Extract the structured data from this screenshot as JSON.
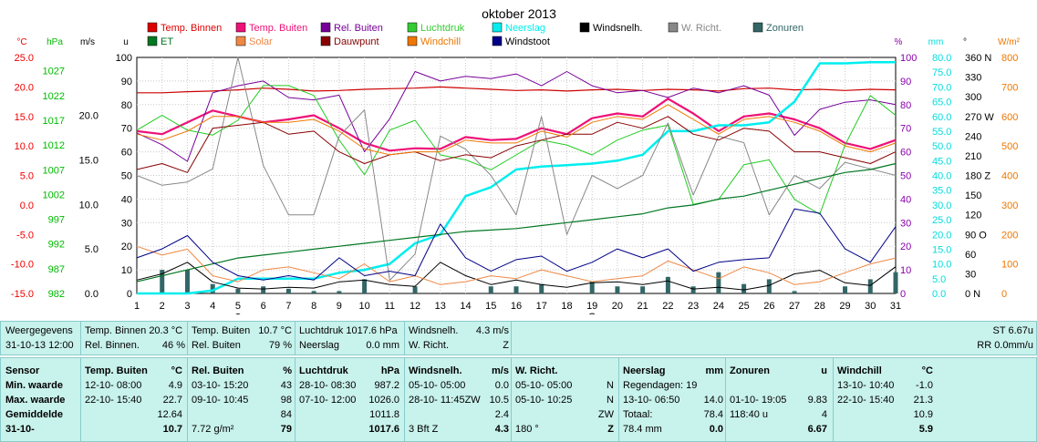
{
  "chart_data": {
    "type": "line",
    "title": "oktober 2013",
    "x": [
      1,
      2,
      3,
      4,
      5,
      6,
      7,
      8,
      9,
      10,
      11,
      12,
      13,
      14,
      15,
      16,
      17,
      18,
      19,
      20,
      21,
      22,
      23,
      24,
      25,
      26,
      27,
      28,
      29,
      30,
      31
    ],
    "axes": {
      "temp": {
        "unit": "°C",
        "ticks": [
          "25.0",
          "20.0",
          "15.0",
          "10.0",
          "5.0",
          "0.0",
          "-5.0",
          "-10.0",
          "-15.0"
        ],
        "color": "#ee0000"
      },
      "press": {
        "unit": "hPa",
        "ticks": [
          "1027",
          "1022",
          "1017",
          "1012",
          "1007",
          "1002",
          "997",
          "992",
          "987",
          "982"
        ],
        "color": "#00bb00"
      },
      "wind": {
        "unit": "m/s",
        "ticks": [
          "20.0",
          "15.0",
          "10.0",
          "5.0",
          "0.0"
        ],
        "color": "#000000"
      },
      "uv": {
        "unit": "u",
        "ticks": [
          "100",
          "90",
          "80",
          "70",
          "60",
          "50",
          "40",
          "30",
          "20",
          "10",
          "0"
        ],
        "color": "#000000"
      },
      "pct": {
        "unit": "%",
        "ticks": [
          "100",
          "90",
          "80",
          "70",
          "60",
          "50",
          "40",
          "30",
          "20",
          "10",
          "0"
        ],
        "color": "#8800aa"
      },
      "rain": {
        "unit": "mm",
        "ticks": [
          "80.0",
          "75.0",
          "70.0",
          "65.0",
          "60.0",
          "55.0",
          "50.0",
          "45.0",
          "40.0",
          "35.0",
          "30.0",
          "25.0",
          "20.0",
          "15.0",
          "10.0",
          "5.0",
          "0.0"
        ],
        "color": "#00dddd"
      },
      "dir": {
        "unit": "°",
        "ticks": [
          "360 N",
          "330",
          "300",
          "270 W",
          "240",
          "210",
          "180 Z",
          "150",
          "120",
          "90 O",
          "60",
          "30",
          "0 N"
        ],
        "color": "#000000"
      },
      "solar": {
        "unit": "W/m²",
        "ticks": [
          "800",
          "700",
          "600",
          "500",
          "400",
          "300",
          "200",
          "100",
          "0"
        ],
        "color": "#ee7700"
      }
    },
    "legend": [
      {
        "name": "Temp. Binnen",
        "color": "#dd0000"
      },
      {
        "name": "Temp. Buiten",
        "color": "#ee1177"
      },
      {
        "name": "Rel. Buiten",
        "color": "#770099"
      },
      {
        "name": "Luchtdruk",
        "color": "#33cc33"
      },
      {
        "name": "Neerslag",
        "color": "#00eeee"
      },
      {
        "name": "Windsnelh.",
        "color": "#000000"
      },
      {
        "name": "W. Richt.",
        "color": "#888888"
      },
      {
        "name": "Zonuren",
        "color": "#336666"
      },
      {
        "name": "ET",
        "color": "#007722"
      },
      {
        "name": "Solar",
        "color": "#ee8844"
      },
      {
        "name": "Dauwpunt",
        "color": "#880000"
      },
      {
        "name": "Windchill",
        "color": "#ee7700"
      },
      {
        "name": "Windstoot",
        "color": "#000088"
      }
    ],
    "series": [
      {
        "name": "Temp. Binnen",
        "axis": "temp",
        "color": "#cc0000",
        "width": 1.2,
        "values": [
          19.0,
          19.0,
          19.2,
          19.3,
          19.5,
          19.8,
          19.6,
          19.3,
          19.4,
          19.6,
          19.7,
          19.8,
          20.0,
          19.8,
          19.6,
          19.4,
          19.5,
          19.3,
          19.5,
          19.6,
          19.4,
          19.6,
          19.5,
          19.3,
          19.7,
          19.8,
          19.5,
          19.6,
          19.4,
          19.6,
          19.5
        ]
      },
      {
        "name": "Temp. Buiten",
        "axis": "temp",
        "color": "#ee1177",
        "width": 2.2,
        "values": [
          12.5,
          12.0,
          14.0,
          16.0,
          15.0,
          14.0,
          14.5,
          15.2,
          13.0,
          10.5,
          9.2,
          9.6,
          9.5,
          11.5,
          11.0,
          11.2,
          13.0,
          12.0,
          14.7,
          15.5,
          15.0,
          18.0,
          15.5,
          12.5,
          15.0,
          15.5,
          14.5,
          13.0,
          10.5,
          9.5,
          11.0
        ]
      },
      {
        "name": "Rel. Buiten",
        "axis": "pct",
        "color": "#770099",
        "width": 1,
        "values": [
          68,
          63,
          56,
          85,
          88,
          90,
          83,
          82,
          84,
          60,
          74,
          94,
          90,
          92,
          91,
          93,
          88,
          94,
          88,
          85,
          86,
          83,
          87,
          85,
          88,
          84,
          67,
          78,
          81,
          82,
          80
        ]
      },
      {
        "name": "Luchtdruk",
        "axis": "press",
        "color": "#22cc22",
        "width": 1,
        "values": [
          1015,
          1018,
          1015,
          1014,
          1017,
          1024,
          1024,
          1022,
          1013,
          1006,
          1015,
          1017,
          1010,
          1009,
          1007,
          1010,
          1013,
          1012,
          1010,
          1013,
          1015,
          1016,
          1000,
          1001,
          1008,
          1009,
          1001,
          998,
          1012,
          1022,
          1018
        ]
      },
      {
        "name": "Neerslag",
        "axis": "rain",
        "color": "#00eeee",
        "width": 2.5,
        "values": [
          0,
          0,
          0,
          1,
          5,
          5,
          5,
          5,
          7,
          8,
          10,
          17,
          20,
          33,
          36,
          42,
          43,
          43.5,
          44,
          45,
          47,
          55,
          55,
          57,
          57,
          58,
          65,
          78,
          78,
          78.4,
          78.4
        ]
      },
      {
        "name": "Windsnelh.",
        "axis": "wind",
        "color": "#000000",
        "width": 1,
        "values": [
          1.5,
          2.2,
          3.5,
          1.3,
          0.6,
          0.5,
          0.7,
          0.6,
          1.3,
          1.5,
          1.0,
          0.8,
          3.5,
          2.0,
          1.0,
          1.5,
          1.0,
          0.7,
          1.2,
          1.3,
          1.0,
          1.4,
          0.5,
          0.7,
          0.4,
          0.9,
          2.2,
          2.6,
          1.2,
          0.9,
          3.0
        ]
      },
      {
        "name": "W. Richt.",
        "axis": "dir",
        "color": "#888888",
        "width": 1,
        "values": [
          180,
          165,
          170,
          190,
          360,
          195,
          120,
          120,
          240,
          280,
          20,
          60,
          240,
          220,
          180,
          120,
          270,
          90,
          180,
          160,
          180,
          260,
          150,
          240,
          230,
          120,
          180,
          160,
          200,
          190,
          180
        ]
      },
      {
        "name": "ET",
        "axis": "rain",
        "color": "#007722",
        "width": 1.2,
        "values": [
          4,
          6,
          8,
          10,
          12,
          13,
          14,
          15,
          16,
          17,
          18,
          19,
          20,
          21,
          21.5,
          22,
          23,
          24,
          25,
          26,
          27,
          29,
          30,
          32,
          33,
          35,
          37,
          39,
          41,
          42,
          44
        ]
      },
      {
        "name": "Solar",
        "axis": "solar",
        "color": "#ee8844",
        "width": 1,
        "values": [
          160,
          130,
          150,
          60,
          40,
          80,
          90,
          70,
          50,
          100,
          40,
          60,
          30,
          40,
          60,
          50,
          80,
          60,
          40,
          50,
          60,
          110,
          80,
          50,
          90,
          70,
          30,
          40,
          70,
          100,
          120
        ]
      },
      {
        "name": "Dauwpunt",
        "axis": "temp",
        "color": "#880000",
        "width": 1,
        "values": [
          6,
          7,
          5.5,
          13,
          13.5,
          14,
          12,
          12.5,
          9,
          7,
          8.5,
          9,
          7.5,
          8.5,
          8,
          10,
          11,
          12,
          12,
          14,
          13,
          15,
          12,
          11,
          13,
          12.5,
          9,
          9,
          8,
          7,
          9
        ]
      },
      {
        "name": "Windchill",
        "axis": "temp",
        "color": "#ee7700",
        "width": 1,
        "values": [
          12.0,
          11.0,
          12.5,
          15.0,
          15.0,
          14.0,
          14.0,
          14.5,
          12.5,
          9.5,
          8.5,
          9.0,
          9.0,
          11.0,
          10.5,
          10.5,
          12.5,
          11.5,
          14.0,
          15.0,
          14.5,
          17.0,
          14.5,
          12.0,
          14.5,
          15.0,
          14.0,
          12.5,
          10.0,
          9.0,
          10.5
        ]
      },
      {
        "name": "Windstoot",
        "axis": "wind",
        "color": "#000088",
        "width": 1,
        "values": [
          4.0,
          5.0,
          6.5,
          3.5,
          2.0,
          1.5,
          2.0,
          1.5,
          4.0,
          2.0,
          2.5,
          2.0,
          7.8,
          4.0,
          2.5,
          3.8,
          4.2,
          2.5,
          3.5,
          5.0,
          4.0,
          5.0,
          2.5,
          3.5,
          3.8,
          4.0,
          9.5,
          9.0,
          5.0,
          3.5,
          7.5
        ]
      }
    ],
    "bars": {
      "name": "Zonuren",
      "axis": "uv",
      "color": "#336666",
      "values": [
        0,
        10,
        10,
        4,
        2,
        3,
        2,
        1,
        1,
        6,
        0,
        3,
        0,
        0,
        3,
        3,
        4,
        0,
        5,
        3,
        3,
        7,
        3,
        9,
        4,
        6,
        1,
        0,
        3,
        6,
        9
      ]
    },
    "markers": [
      {
        "x": 5,
        "label": "●"
      },
      {
        "x": 19,
        "label": "○"
      }
    ]
  },
  "summary": {
    "row1": [
      {
        "l1": "Weergegevens",
        "v1": "",
        "l2": "31-10-13 12:00",
        "v2": ""
      },
      {
        "l1": "Temp. Binnen 20.3 °C",
        "v1": "",
        "l2": "Rel. Binnen.",
        "v2": "46 %"
      },
      {
        "l1": "Temp. Buiten",
        "v1": "10.7 °C",
        "l2": "Rel. Buiten",
        "v2": "79 %"
      },
      {
        "l1": "Luchtdruk 1017.6 hPa",
        "v1": "",
        "l2": "Neerslag",
        "v2": "0.0 mm"
      },
      {
        "l1": "Windsnelh.",
        "v1": "4.3 m/s",
        "l2": "W. Richt.",
        "v2": "Z"
      }
    ],
    "right_top": "ST 6.67u",
    "right_bottom": "RR 0.0mm/u"
  },
  "table": {
    "sensor_col": {
      "title": "Sensor",
      "rows": [
        "Min. waarde",
        "Max. waarde",
        "Gemiddelde",
        "31-10-"
      ]
    },
    "columns": [
      {
        "title": "Temp. Buiten",
        "unit": "°C",
        "rows": [
          [
            "12-10- 08:00",
            "4.9"
          ],
          [
            "22-10- 15:40",
            "22.7"
          ],
          [
            "",
            "12.64"
          ],
          [
            "",
            "10.7"
          ]
        ]
      },
      {
        "title": "Rel. Buiten",
        "unit": "%",
        "rows": [
          [
            "03-10- 15:20",
            "43"
          ],
          [
            "09-10- 10:45",
            "98"
          ],
          [
            "",
            "84"
          ],
          [
            "7.72 g/m²",
            "79"
          ]
        ]
      },
      {
        "title": "Luchtdruk",
        "unit": "hPa",
        "rows": [
          [
            "28-10- 08:30",
            "987.2"
          ],
          [
            "07-10- 12:00",
            "1026.0"
          ],
          [
            "",
            "1011.8"
          ],
          [
            "",
            "1017.6"
          ]
        ]
      },
      {
        "title": "Windsnelh.",
        "unit": "m/s",
        "rows": [
          [
            "05-10- 05:00",
            "0.0"
          ],
          [
            "28-10- 11:45ZW",
            "10.5"
          ],
          [
            "",
            "2.4"
          ],
          [
            "3 Bft Z",
            "4.3"
          ]
        ]
      },
      {
        "title": "W. Richt.",
        "unit": "",
        "rows": [
          [
            "05-10- 05:00",
            "N"
          ],
          [
            "05-10- 10:25",
            "N"
          ],
          [
            "",
            "ZW"
          ],
          [
            "180 °",
            "Z"
          ]
        ]
      },
      {
        "title": "Neerslag",
        "unit": "mm",
        "rows": [
          [
            "Regendagen: 19",
            ""
          ],
          [
            "13-10- 06:50",
            "14.0"
          ],
          [
            "Totaal:",
            "78.4"
          ],
          [
            "78.4 mm",
            "0.0"
          ]
        ]
      },
      {
        "title": "Zonuren",
        "unit": "u",
        "rows": [
          [
            "",
            ""
          ],
          [
            "01-10- 19:05",
            "9.83"
          ],
          [
            "118:40 u",
            "4"
          ],
          [
            "",
            "6.67"
          ]
        ]
      },
      {
        "title": "Windchill",
        "unit": "°C",
        "rows": [
          [
            "13-10- 10:40",
            "-1.0"
          ],
          [
            "22-10- 15:40",
            "21.3"
          ],
          [
            "",
            "10.9"
          ],
          [
            "",
            "5.9"
          ]
        ]
      }
    ]
  }
}
